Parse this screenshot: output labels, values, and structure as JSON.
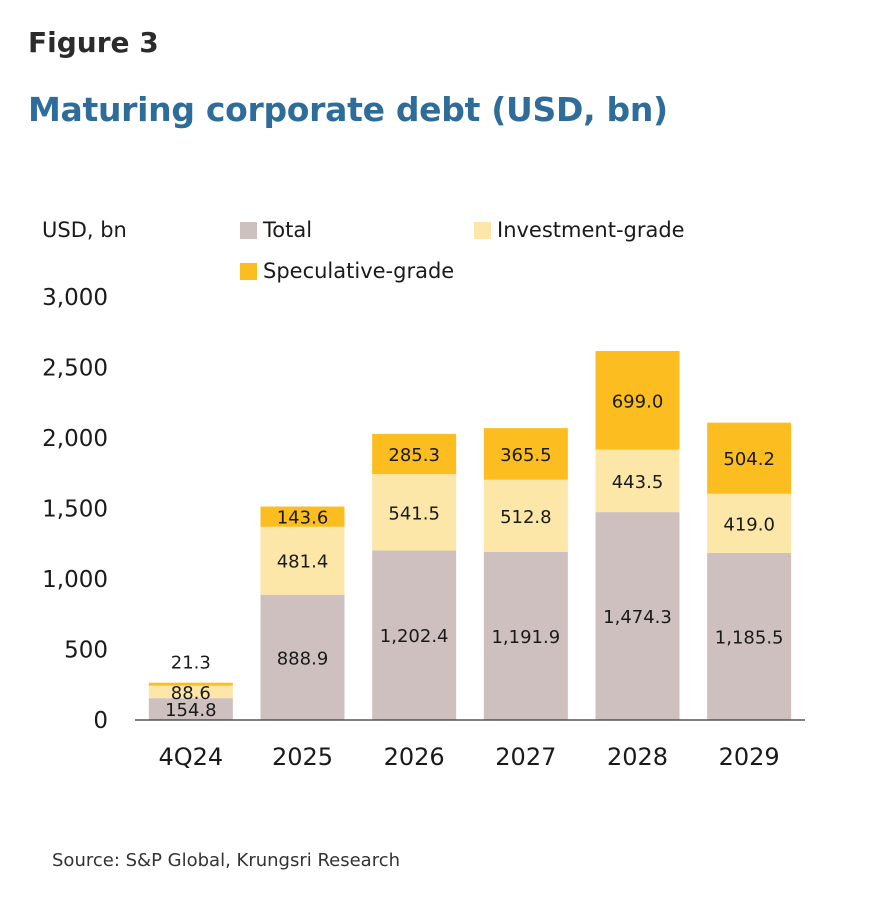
{
  "header": {
    "figure_label": "Figure 3",
    "title": "Maturing corporate debt (USD, bn)"
  },
  "source": "Source: S&P Global, Krungsri Research",
  "colors": {
    "total": "#cdc0bf",
    "investment_grade": "#fde7a8",
    "speculative_grade": "#fbbd1f",
    "title": "#2e6d9a"
  },
  "chart_data": {
    "type": "bar",
    "stacked": true,
    "ylabel": "USD, bn",
    "ylim": [
      0,
      3000
    ],
    "yticks": [
      0,
      500,
      1000,
      1500,
      2000,
      2500,
      3000
    ],
    "ytick_labels": [
      "0",
      "500",
      "1,000",
      "1,500",
      "2,000",
      "2,500",
      "3,000"
    ],
    "categories": [
      "4Q24",
      "2025",
      "2026",
      "2027",
      "2028",
      "2029"
    ],
    "legend_position": "top",
    "grid": false,
    "series": [
      {
        "name": "Total",
        "color": "#cdc0bf",
        "values": [
          154.8,
          888.9,
          1202.4,
          1191.9,
          1474.3,
          1185.5
        ],
        "labels": [
          "154.8",
          "888.9",
          "1,202.4",
          "1,191.9",
          "1,474.3",
          "1,185.5"
        ]
      },
      {
        "name": "Investment-grade",
        "color": "#fde7a8",
        "values": [
          88.6,
          481.4,
          541.5,
          512.8,
          443.5,
          419.0
        ],
        "labels": [
          "88.6",
          "481.4",
          "541.5",
          "512.8",
          "443.5",
          "419.0"
        ]
      },
      {
        "name": "Speculative-grade",
        "color": "#fbbd1f",
        "values": [
          21.3,
          143.6,
          285.3,
          365.5,
          699.0,
          504.2
        ],
        "labels": [
          "21.3",
          "143.6",
          "285.3",
          "365.5",
          "699.0",
          "504.2"
        ]
      }
    ]
  }
}
